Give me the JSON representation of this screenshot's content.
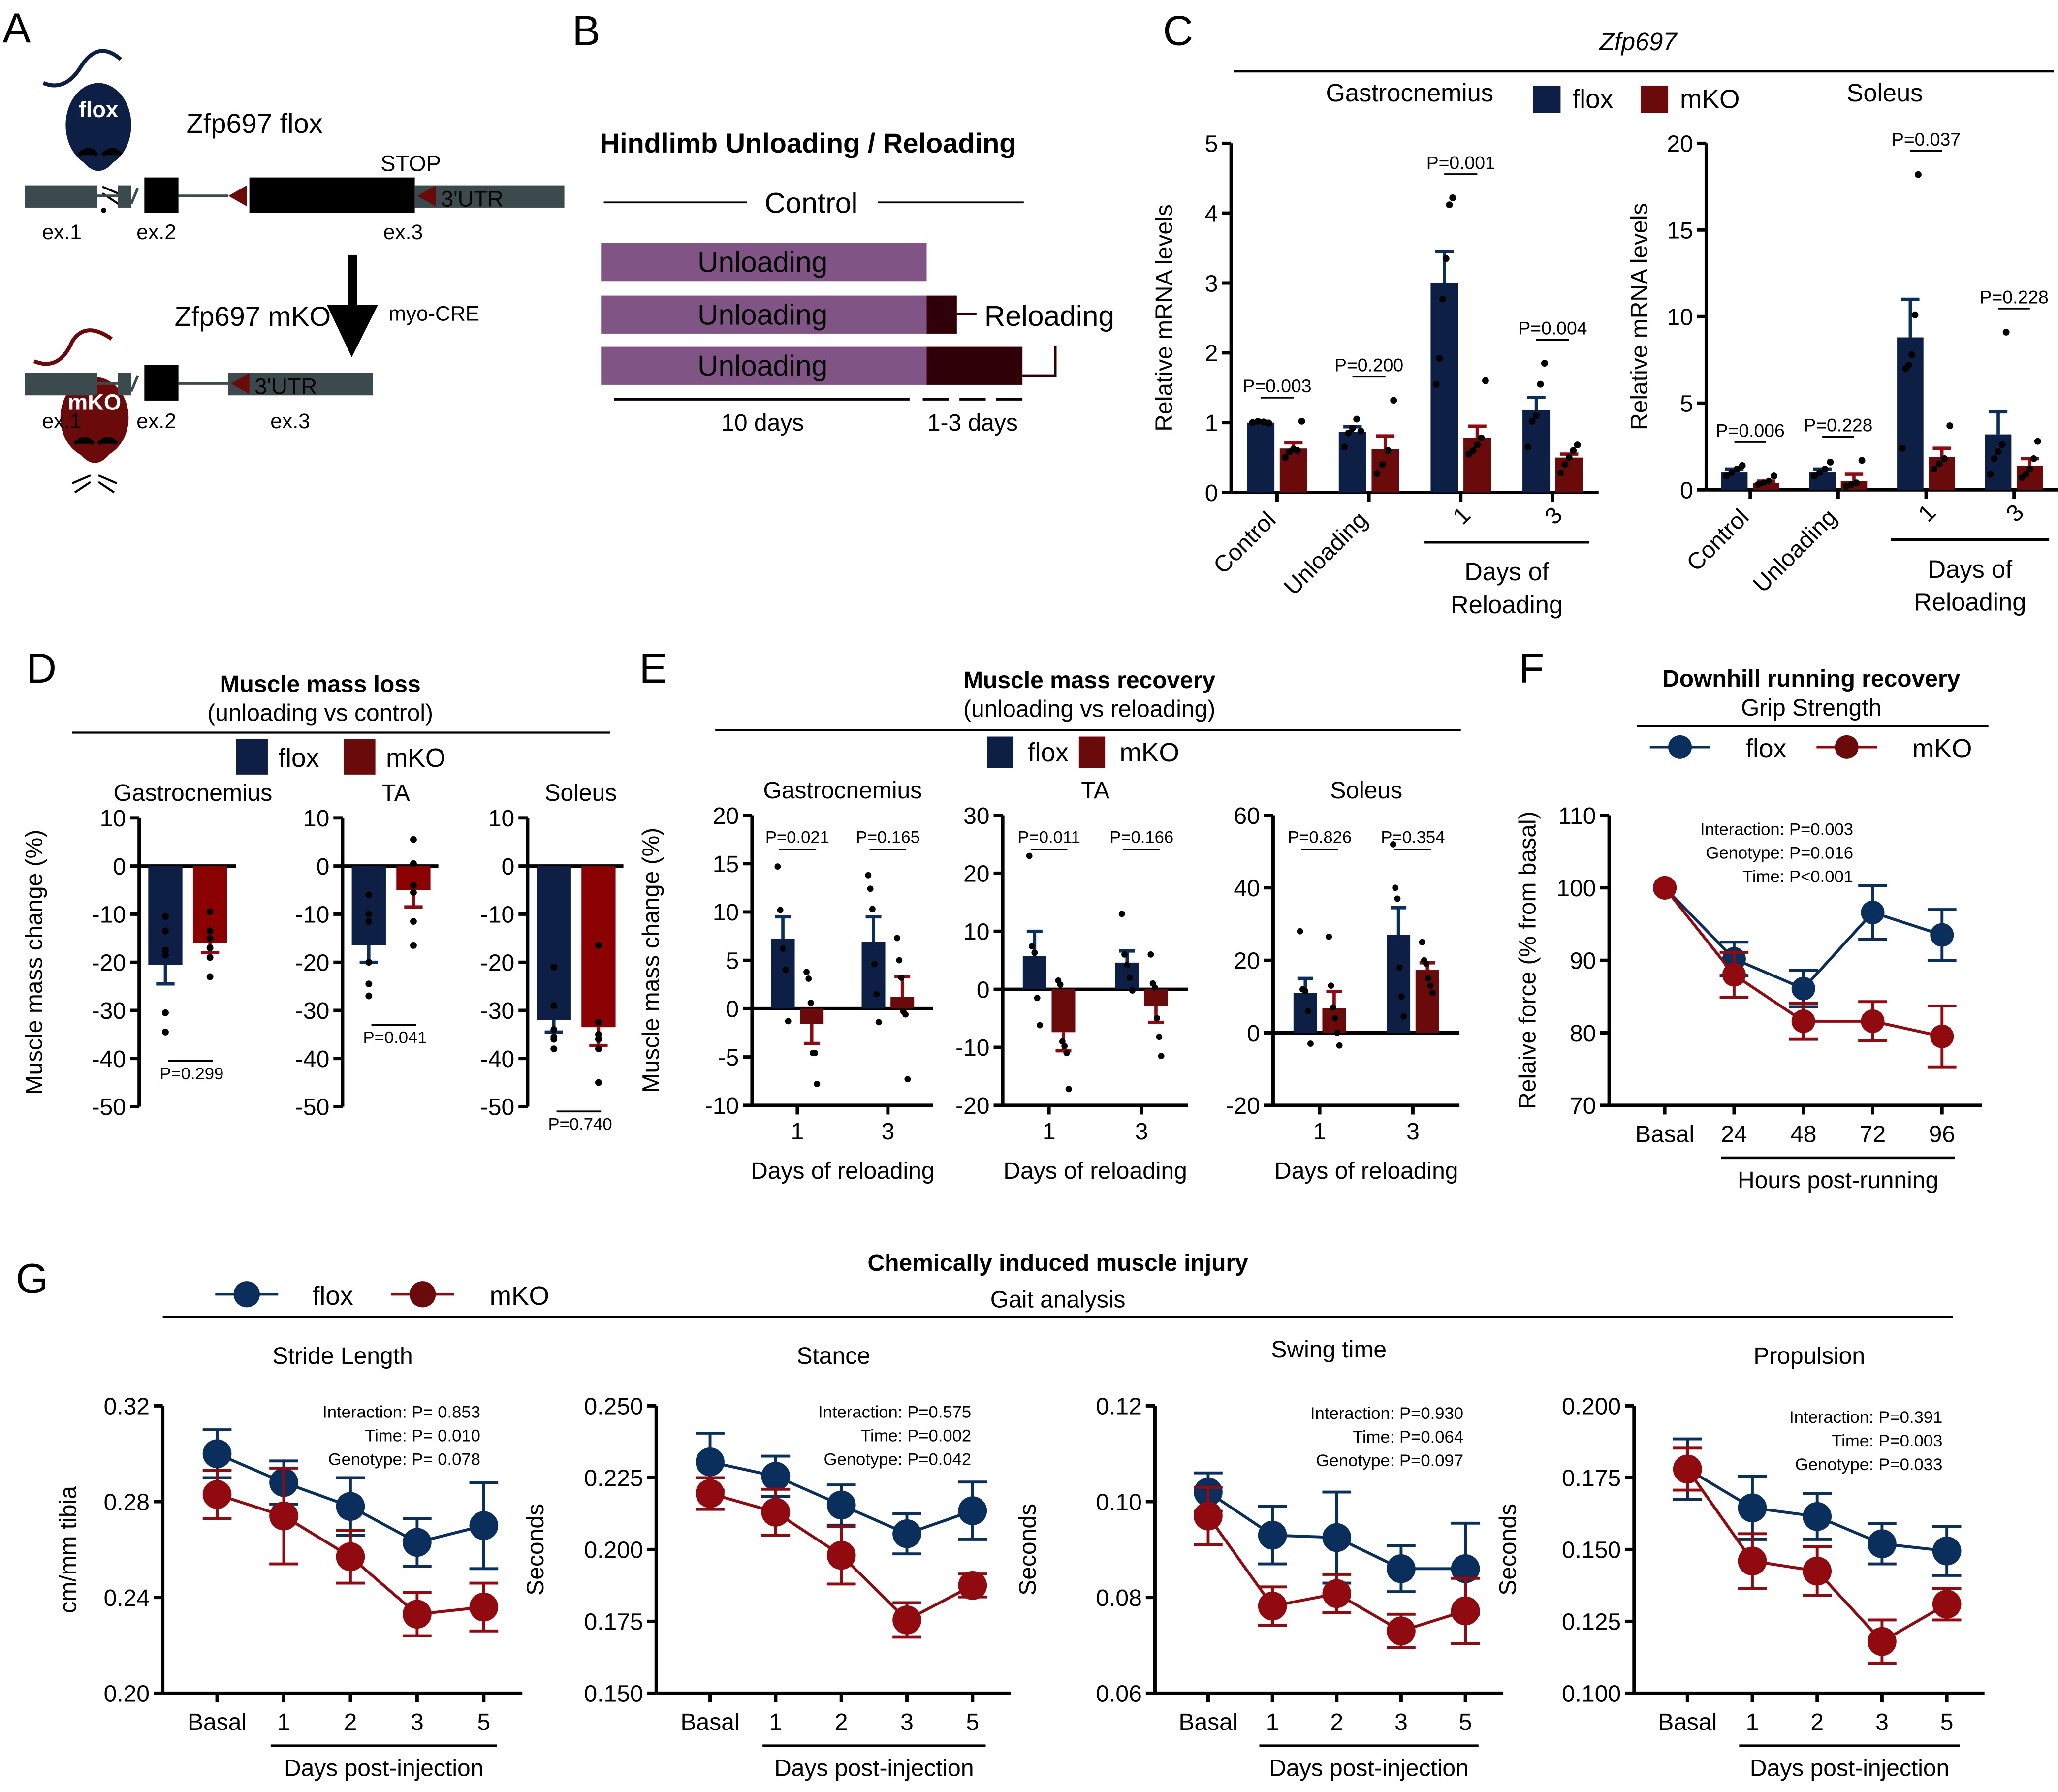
{
  "colors": {
    "flox": "#0d1f45",
    "mko": "#6b0a0a",
    "flox_line": "#0a2f5c",
    "mko_line": "#900a0f",
    "mko_bar_d": "#8b0000",
    "unloading": "#805586",
    "reloading": "#300008",
    "gene_bar": "#3a4a4d"
  },
  "panel_labels": [
    "A",
    "B",
    "C",
    "D",
    "E",
    "F",
    "G"
  ],
  "panelA": {
    "flox_mouse_label": "flox",
    "flox_title": "Zfp697 flox",
    "mko_mouse_label": "mKO",
    "mko_title": "Zfp697 mKO",
    "stop_label": "STOP",
    "utr_label": "3'UTR",
    "exon_labels": [
      "ex.1",
      "ex.2",
      "ex.3"
    ],
    "arrow_label": "myo-CRE"
  },
  "panelB": {
    "title": "Hindlimb Unloading / Reloading",
    "control_label": "Control",
    "unloading_label": "Unloading",
    "reloading_label": "Reloading",
    "duration_unloading": "10 days",
    "duration_reloading": "1-3 days"
  },
  "legend": {
    "flox": "flox",
    "mko": "mKO"
  },
  "chart_data": [
    {
      "id": "C-gastrocnemius",
      "type": "bar",
      "gene": "Zfp697",
      "title": "Gastrocnemius",
      "ylabel": "Relative mRNA levels",
      "ylim": [
        0,
        5
      ],
      "yticks": [
        0,
        1,
        2,
        3,
        4,
        5
      ],
      "categories": [
        "Control",
        "Unloading",
        "1",
        "3"
      ],
      "group_label": "Days of Reloading",
      "series": [
        {
          "name": "flox",
          "values": [
            1.0,
            0.87,
            3.0,
            1.18
          ],
          "errors": [
            0.02,
            0.07,
            0.45,
            0.18
          ],
          "points": [
            [
              1.0,
              1.02,
              1.01,
              0.99
            ],
            [
              0.65,
              0.85,
              0.92,
              1.05,
              0.88
            ],
            [
              1.55,
              1.92,
              2.77,
              3.35,
              4.12,
              4.22
            ],
            [
              0.65,
              1.02,
              1.1,
              1.55,
              1.85
            ]
          ]
        },
        {
          "name": "mKO",
          "values": [
            0.63,
            0.62,
            0.78,
            0.5
          ],
          "errors": [
            0.08,
            0.19,
            0.17,
            0.05
          ],
          "points": [
            [
              0.5,
              0.58,
              0.62,
              0.6,
              1.02
            ],
            [
              0.27,
              0.4,
              0.6,
              1.32
            ],
            [
              0.55,
              0.6,
              0.68,
              0.78,
              1.6
            ],
            [
              0.28,
              0.4,
              0.5,
              0.6,
              0.68
            ]
          ]
        }
      ],
      "pvalues": [
        "P=0.003",
        "P=0.200",
        "P=0.001",
        "P=0.004"
      ]
    },
    {
      "id": "C-soleus",
      "type": "bar",
      "gene": "Zfp697",
      "title": "Soleus",
      "ylabel": "Relative mRNA levels",
      "ylim": [
        0,
        20
      ],
      "yticks": [
        0,
        5,
        10,
        15,
        20
      ],
      "categories": [
        "Control",
        "Unloading",
        "1",
        "3"
      ],
      "group_label": "Days of Reloading",
      "series": [
        {
          "name": "flox",
          "values": [
            1.0,
            1.0,
            8.8,
            3.2
          ],
          "errors": [
            0.2,
            0.2,
            2.2,
            1.3
          ],
          "points": [
            [
              0.8,
              1.0,
              1.2,
              1.4
            ],
            [
              0.8,
              1.0,
              1.2,
              1.6
            ],
            [
              2.4,
              7.0,
              7.2,
              7.8,
              10.1,
              18.2
            ],
            [
              0.9,
              1.8,
              2.2,
              2.6,
              9.1
            ]
          ]
        },
        {
          "name": "mKO",
          "values": [
            0.4,
            0.5,
            1.9,
            1.4
          ],
          "errors": [
            0.1,
            0.4,
            0.5,
            0.4
          ],
          "points": [
            [
              0.3,
              0.4,
              0.5,
              0.8
            ],
            [
              0.2,
              0.3,
              0.4,
              1.7
            ],
            [
              1.2,
              1.5,
              1.8,
              3.7
            ],
            [
              0.7,
              0.9,
              1.2,
              1.8,
              2.8
            ]
          ]
        }
      ],
      "pvalues": [
        "P=0.006",
        "P=0.228",
        "P=0.037",
        "P=0.228"
      ]
    },
    {
      "id": "D",
      "type": "bar",
      "title": "Muscle mass loss",
      "subtitle": "(unloading vs control)",
      "ylabel": "Muscle mass change (%)",
      "ylim": [
        -50,
        10
      ],
      "yticks": [
        10,
        0,
        -10,
        -20,
        -30,
        -40,
        -50
      ],
      "subplots": [
        {
          "title": "Gastrocnemius",
          "flox": {
            "value": -20.5,
            "error": 4.0,
            "points": [
              -10.5,
              -13.5,
              -17.5,
              -18.5,
              -30.5,
              -34.5
            ]
          },
          "mko": {
            "value": -16.0,
            "error": 2.0,
            "points": [
              -9.5,
              -13.5,
              -15,
              -17,
              -19,
              -23
            ]
          },
          "pvalue": "P=0.299"
        },
        {
          "title": "TA",
          "flox": {
            "value": -16.5,
            "error": 3.5,
            "points": [
              -6,
              -10,
              -11.5,
              -20,
              -24.5,
              -27
            ]
          },
          "mko": {
            "value": -5.0,
            "error": 3.5,
            "points": [
              5.5,
              0.5,
              -4,
              -5.5,
              -11.5,
              -16.5
            ]
          },
          "pvalue": "P=0.041"
        },
        {
          "title": "Soleus",
          "flox": {
            "value": -32.0,
            "error": 2.5,
            "points": [
              -21,
              -29,
              -34,
              -35.5,
              -36,
              -38
            ]
          },
          "mko": {
            "value": -33.5,
            "error": 3.8,
            "points": [
              -16.5,
              -32.5,
              -35,
              -36,
              -38,
              -45
            ]
          },
          "pvalue": "P=0.740"
        }
      ]
    },
    {
      "id": "E",
      "type": "bar",
      "title": "Muscle mass recovery",
      "subtitle": "(unloading vs reloading)",
      "ylabel": "Muscle mass change (%)",
      "xlabel": "Days of reloading",
      "categories": [
        "1",
        "3"
      ],
      "subplots": [
        {
          "title": "Gastrocnemius",
          "ylim": [
            -10,
            20
          ],
          "yticks": [
            20,
            15,
            10,
            5,
            0,
            -5,
            -10
          ],
          "flox": {
            "values": [
              7.2,
              6.9
            ],
            "errors": [
              2.3,
              2.6
            ],
            "points": [
              [
                14.7,
                10.2,
                6.2,
                4.0,
                -1.3
              ],
              [
                13.8,
                12.4,
                10.3,
                4.6,
                1.5,
                -1.4
              ]
            ]
          },
          "mko": {
            "values": [
              -1.6,
              1.2
            ],
            "errors": [
              2.0,
              2.1
            ],
            "points": [
              [
                3.8,
                3.1,
                0.6,
                -4.6,
                -4.6,
                -7.8
              ],
              [
                7.3,
                5.0,
                3.2,
                -0.3,
                -0.6,
                -7.3
              ]
            ]
          },
          "pvalues": [
            "P=0.021",
            "P=0.165"
          ]
        },
        {
          "title": "TA",
          "ylim": [
            -20,
            30
          ],
          "yticks": [
            30,
            20,
            10,
            0,
            -10,
            -20
          ],
          "flox": {
            "values": [
              5.7,
              4.6
            ],
            "errors": [
              4.3,
              2.0
            ],
            "points": [
              [
                23.0,
                7.4,
                6.3,
                -1.5,
                -6.2
              ],
              [
                13.0,
                6.0,
                4.2,
                2.0,
                -0.2
              ]
            ]
          },
          "mko": {
            "values": [
              -7.4,
              -2.9
            ],
            "errors": [
              3.2,
              2.8
            ],
            "points": [
              [
                1.5,
                0.8,
                -9.0,
                -9.8,
                -11.0,
                -17.2
              ],
              [
                6.0,
                1.0,
                0.3,
                -5.0,
                -8.2,
                -11.5
              ]
            ]
          },
          "pvalues": [
            "P=0.011",
            "P=0.166"
          ]
        },
        {
          "title": "Soleus",
          "ylim": [
            -20,
            60
          ],
          "yticks": [
            60,
            40,
            20,
            0,
            -20
          ],
          "flox": {
            "values": [
              11.0,
              27.0
            ],
            "errors": [
              4.0,
              7.5
            ],
            "points": [
              [
                28.0,
                12.0,
                11.5,
                6.0,
                -3.0
              ],
              [
                52.0,
                40.0,
                37.0,
                18.0,
                10.0,
                4.5
              ]
            ]
          },
          "mko": {
            "values": [
              6.8,
              17.3
            ],
            "errors": [
              4.6,
              2.0
            ],
            "points": [
              [
                26.5,
                13.0,
                7.0,
                4.0,
                0.0,
                -3.5
              ],
              [
                25.0,
                20.0,
                19.0,
                15.0,
                13.0,
                11.0
              ]
            ]
          },
          "pvalues": [
            "P=0.826",
            "P=0.354"
          ]
        }
      ]
    },
    {
      "id": "F",
      "type": "line",
      "title": "Downhill running recovery",
      "subtitle": "Grip Strength",
      "ylabel": "Relaive force (% from basal)",
      "xlabel": "Hours post-running",
      "x": [
        "Basal",
        "24",
        "48",
        "72",
        "96"
      ],
      "ylim": [
        70,
        110
      ],
      "yticks": [
        70,
        80,
        90,
        100,
        110
      ],
      "series": [
        {
          "name": "flox",
          "values": [
            100,
            90.2,
            86.1,
            96.6,
            93.5
          ],
          "errors": [
            0,
            2.3,
            2.5,
            3.7,
            3.5
          ]
        },
        {
          "name": "mKO",
          "values": [
            100,
            88.0,
            81.6,
            81.6,
            79.5
          ],
          "errors": [
            0,
            3.1,
            2.5,
            2.7,
            4.2
          ]
        }
      ],
      "stats": [
        "Interaction: P=0.003",
        "Genotype: P=0.016",
        "Time: P<0.001"
      ]
    },
    {
      "id": "G-stride",
      "type": "line",
      "title": "Stride Length",
      "ylabel": "cm/mm tibia",
      "xlabel": "Days post-injection",
      "x": [
        "Basal",
        "1",
        "2",
        "3",
        "5"
      ],
      "ylim": [
        0.2,
        0.32
      ],
      "yticks": [
        "0.20",
        "0.24",
        "0.28",
        "0.32"
      ],
      "series": [
        {
          "name": "flox",
          "values": [
            0.3,
            0.288,
            0.278,
            0.263,
            0.27
          ],
          "errors": [
            0.01,
            0.009,
            0.012,
            0.01,
            0.018
          ]
        },
        {
          "name": "mKO",
          "values": [
            0.283,
            0.274,
            0.257,
            0.233,
            0.236
          ],
          "errors": [
            0.01,
            0.02,
            0.011,
            0.009,
            0.01
          ]
        }
      ],
      "stats": [
        "Interaction: P= 0.853",
        "Time: P= 0.010",
        "Genotype: P= 0.078"
      ]
    },
    {
      "id": "G-stance",
      "type": "line",
      "title": "Stance",
      "ylabel": "Seconds",
      "xlabel": "Days post-injection",
      "x": [
        "Basal",
        "1",
        "2",
        "3",
        "5"
      ],
      "ylim": [
        0.15,
        0.25
      ],
      "yticks": [
        "0.150",
        "0.175",
        "0.200",
        "0.225",
        "0.250"
      ],
      "series": [
        {
          "name": "flox",
          "values": [
            0.2305,
            0.2255,
            0.2155,
            0.2055,
            0.2135
          ],
          "errors": [
            0.01,
            0.007,
            0.007,
            0.007,
            0.01
          ]
        },
        {
          "name": "mKO",
          "values": [
            0.2195,
            0.213,
            0.198,
            0.1755,
            0.1875
          ],
          "errors": [
            0.0055,
            0.008,
            0.01,
            0.006,
            0.004
          ]
        }
      ],
      "stats": [
        "Interaction: P=0.575",
        "Time: P=0.002",
        "Genotype: P=0.042"
      ]
    },
    {
      "id": "G-swing",
      "type": "line",
      "title": "Swing time",
      "ylabel": "Seconds",
      "xlabel": "Days post-injection",
      "x": [
        "Basal",
        "1",
        "2",
        "3",
        "5"
      ],
      "ylim": [
        0.06,
        0.12
      ],
      "yticks": [
        "0.06",
        "0.08",
        "0.10",
        "0.12"
      ],
      "series": [
        {
          "name": "flox",
          "values": [
            0.102,
            0.093,
            0.0925,
            0.086,
            0.086
          ],
          "errors": [
            0.004,
            0.006,
            0.0095,
            0.0048,
            0.0095
          ]
        },
        {
          "name": "mKO",
          "values": [
            0.097,
            0.0782,
            0.0808,
            0.073,
            0.0772
          ],
          "errors": [
            0.006,
            0.004,
            0.004,
            0.0035,
            0.0068
          ]
        }
      ],
      "stats": [
        "Interaction: P=0.930",
        "Time: P=0.064",
        "Genotype: P=0.097"
      ]
    },
    {
      "id": "G-propulsion",
      "type": "line",
      "title": "Propulsion",
      "ylabel": "Seconds",
      "xlabel": "Days post-injection",
      "x": [
        "Basal",
        "1",
        "2",
        "3",
        "5"
      ],
      "ylim": [
        0.1,
        0.2
      ],
      "yticks": [
        "0.100",
        "0.125",
        "0.150",
        "0.175",
        "0.200"
      ],
      "series": [
        {
          "name": "flox",
          "values": [
            0.178,
            0.1645,
            0.1615,
            0.152,
            0.1495
          ],
          "errors": [
            0.0105,
            0.011,
            0.008,
            0.007,
            0.0085
          ]
        },
        {
          "name": "mKO",
          "values": [
            0.178,
            0.146,
            0.1425,
            0.118,
            0.131
          ],
          "errors": [
            0.0073,
            0.0095,
            0.0085,
            0.0075,
            0.0055
          ]
        }
      ],
      "stats": [
        "Interaction: P=0.391",
        "Time: P=0.003",
        "Genotype: P=0.033"
      ]
    }
  ],
  "panelG": {
    "title": "Chemically induced muscle injury",
    "subtitle": "Gait analysis"
  }
}
